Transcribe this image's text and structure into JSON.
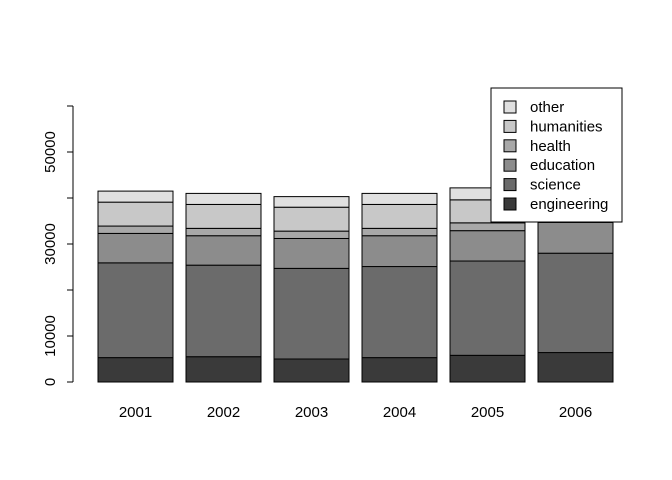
{
  "chart_data": {
    "type": "bar",
    "stacked": true,
    "title": "",
    "xlabel": "",
    "ylabel": "",
    "categories": [
      "2001",
      "2002",
      "2003",
      "2004",
      "2005",
      "2006"
    ],
    "ylim": [
      0,
      60000
    ],
    "yticks": [
      0,
      10000,
      30000,
      50000
    ],
    "grid": false,
    "legend_position": "top-right",
    "legend_order": [
      "other",
      "humanities",
      "health",
      "education",
      "science",
      "engineering"
    ],
    "series": [
      {
        "name": "engineering",
        "color": "#3a3a3a",
        "values": [
          5300,
          5500,
          5000,
          5300,
          5800,
          6400
        ]
      },
      {
        "name": "science",
        "color": "#6b6b6b",
        "values": [
          20600,
          19900,
          19700,
          19800,
          20500,
          21600
        ]
      },
      {
        "name": "education",
        "color": "#8c8c8c",
        "values": [
          6400,
          6400,
          6500,
          6700,
          6600,
          6700
        ]
      },
      {
        "name": "health",
        "color": "#a8a8a8",
        "values": [
          1600,
          1600,
          1600,
          1600,
          1700,
          1800
        ]
      },
      {
        "name": "humanities",
        "color": "#c8c8c8",
        "values": [
          5200,
          5200,
          5200,
          5200,
          5000,
          4500
        ]
      },
      {
        "name": "other",
        "color": "#e0e0e0",
        "values": [
          2400,
          2400,
          2300,
          2400,
          2600,
          2600
        ]
      }
    ]
  }
}
